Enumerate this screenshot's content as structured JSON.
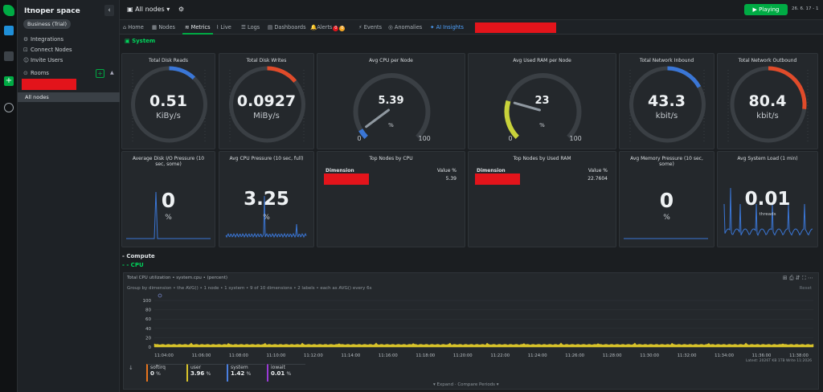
{
  "space": {
    "name": "Itnoper space",
    "plan": "Business (Trial)",
    "menu": [
      "Integrations",
      "Connect Nodes",
      "Invite Users"
    ],
    "rooms_label": "Rooms",
    "selected_room": "All nodes"
  },
  "header": {
    "node_selector": "All nodes",
    "playing": "Playing",
    "time": "26. 6. 17 - 1"
  },
  "tabs": [
    {
      "label": "Home"
    },
    {
      "label": "Nodes"
    },
    {
      "label": "Metrics"
    },
    {
      "label": "Live"
    },
    {
      "label": "Logs"
    },
    {
      "label": "Dashboards"
    },
    {
      "label": "Alerts"
    },
    {
      "label": "Events"
    },
    {
      "label": "Anomalies"
    },
    {
      "label": "AI Insights"
    }
  ],
  "alerts": {
    "critical": "0",
    "warning": "0"
  },
  "sections": {
    "system": "System",
    "compute": "- Compute",
    "cpu": "- - CPU"
  },
  "gauges": [
    {
      "title": "Total Disk Reads",
      "value": "0.51",
      "unit": "KiBy/s",
      "color": "#3a76d6"
    },
    {
      "title": "Total Disk Writes",
      "value": "0.0927",
      "unit": "MiBy/s",
      "color": "#e04b2a"
    },
    {
      "title": "Avg CPU per Node",
      "value": "5.39",
      "unit": "%",
      "min": "0",
      "max": "100",
      "color": "#3a76d6"
    },
    {
      "title": "Avg Used RAM per Node",
      "value": "23",
      "unit": "%",
      "min": "0",
      "max": "100",
      "color": "#c8d23a"
    },
    {
      "title": "Total Network Inbound",
      "value": "43.3",
      "unit": "kbit/s",
      "color": "#3a76d6"
    },
    {
      "title": "Total Network Outbound",
      "value": "80.4",
      "unit": "kbit/s",
      "color": "#e04b2a"
    }
  ],
  "row2": [
    {
      "title": "Average Disk I/O Pressure (10 sec, some)",
      "value": "0",
      "unit": "%"
    },
    {
      "title": "Avg CPU Pressure (10 sec, full)",
      "value": "3.25",
      "unit": "%"
    },
    {
      "title": "Top Nodes by CPU",
      "col1": "Dimension",
      "col2": "Value %",
      "value": "5.39"
    },
    {
      "title": "Top Nodes by Used RAM",
      "col1": "Dimension",
      "col2": "Value %",
      "value": "22.7604"
    },
    {
      "title": "Avg Memory Pressure (10 sec, some)",
      "value": "0",
      "unit": "%"
    },
    {
      "title": "Avg System Load (1 min)",
      "value": "0.01",
      "unit": "threads"
    }
  ],
  "cpu_chart": {
    "title": "Total CPU utilization • system.cpu • (percent)",
    "filters": "Group by dimension • the AVG() • 1 node • 1 system • 9 of 10 dimensions • 2 labels • each as AVG() every 6s",
    "reset": "Reset",
    "yticks": [
      "100",
      "80",
      "60",
      "40",
      "20",
      "0"
    ],
    "xticks": [
      "11:04:00",
      "11:06:00",
      "11:08:00",
      "11:10:00",
      "11:12:00",
      "11:14:00",
      "11:16:00",
      "11:18:00",
      "11:20:00",
      "11:22:00",
      "11:24:00",
      "11:26:00",
      "11:28:00",
      "11:30:00",
      "11:32:00",
      "11:34:00",
      "11:36:00",
      "11:38:00"
    ],
    "latency": "Latest: 2026T KB 1TB Write 11:2026",
    "legend": [
      {
        "name": "softirq",
        "value": "0",
        "unit": "%",
        "color": "#e8741c"
      },
      {
        "name": "user",
        "value": "3.96",
        "unit": "%",
        "color": "#d8c32a"
      },
      {
        "name": "system",
        "value": "1.42",
        "unit": "%",
        "color": "#4a7fe0"
      },
      {
        "name": "iowait",
        "value": "0.01",
        "unit": "%",
        "color": "#9a3ad6"
      }
    ],
    "expand": "Expand · Compare Periods"
  }
}
